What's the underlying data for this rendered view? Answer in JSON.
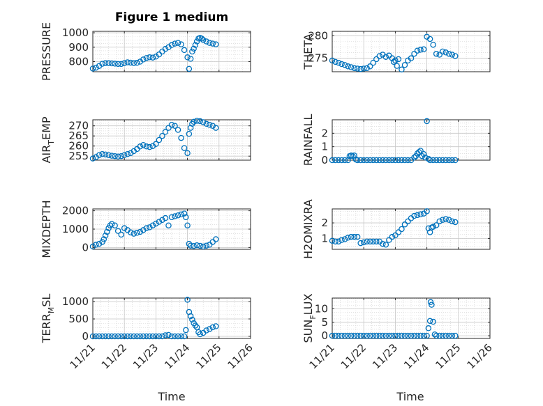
{
  "title": "Figure 1 medium",
  "xlabel": "Time",
  "colors": {
    "marker": "#0072BD",
    "axis": "#262626",
    "grid": "#d0d0d0"
  },
  "chart_data": [
    {
      "type": "scatter",
      "ylabel": "PRESSURE",
      "xlim": [
        0,
        5
      ],
      "ylim": [
        730,
        1010
      ],
      "yticks": [
        800,
        900,
        1000
      ],
      "ytick_labels": [
        "800",
        "900",
        "1000"
      ],
      "xticks": [
        0,
        1,
        2,
        3,
        4,
        5
      ],
      "xtick_labels": [
        "",
        "",
        "",
        "",
        "",
        ""
      ],
      "x": [
        0,
        0.1,
        0.2,
        0.3,
        0.4,
        0.5,
        0.6,
        0.7,
        0.8,
        0.9,
        1.0,
        1.1,
        1.2,
        1.3,
        1.4,
        1.5,
        1.6,
        1.7,
        1.8,
        1.9,
        2.0,
        2.1,
        2.2,
        2.3,
        2.4,
        2.5,
        2.6,
        2.7,
        2.8,
        2.9,
        3.0,
        3.05,
        3.1,
        3.15,
        3.2,
        3.25,
        3.3,
        3.35,
        3.4,
        3.45,
        3.5,
        3.6,
        3.7,
        3.8,
        3.9
      ],
      "y": [
        752,
        758,
        770,
        785,
        790,
        790,
        788,
        786,
        784,
        784,
        790,
        795,
        793,
        790,
        792,
        800,
        815,
        825,
        830,
        828,
        835,
        850,
        870,
        888,
        900,
        915,
        925,
        930,
        920,
        880,
        830,
        750,
        820,
        870,
        890,
        915,
        940,
        960,
        965,
        960,
        950,
        940,
        930,
        925,
        920
      ]
    },
    {
      "type": "scatter",
      "ylabel": "THETA",
      "xlim": [
        0,
        5
      ],
      "ylim": [
        272,
        281
      ],
      "yticks": [
        275,
        280
      ],
      "ytick_labels": [
        "275",
        "280"
      ],
      "xticks": [
        0,
        1,
        2,
        3,
        4,
        5
      ],
      "xtick_labels": [
        "",
        "",
        "",
        "",
        "",
        ""
      ],
      "x": [
        0,
        0.1,
        0.2,
        0.3,
        0.4,
        0.5,
        0.6,
        0.7,
        0.8,
        0.9,
        1.0,
        1.1,
        1.2,
        1.3,
        1.4,
        1.5,
        1.6,
        1.7,
        1.8,
        1.9,
        1.95,
        2.0,
        2.05,
        2.1,
        2.2,
        2.3,
        2.4,
        2.5,
        2.6,
        2.7,
        2.8,
        2.9,
        3.0,
        3.1,
        3.2,
        3.3,
        3.4,
        3.5,
        3.6,
        3.7,
        3.8,
        3.9
      ],
      "y": [
        274.5,
        274.2,
        274,
        273.7,
        273.5,
        273.2,
        273,
        272.8,
        272.7,
        272.6,
        272.7,
        272.8,
        273.2,
        274,
        274.8,
        275.5,
        275.8,
        275.3,
        275.6,
        275,
        274.2,
        274.5,
        273.3,
        274.8,
        272.5,
        273.5,
        274.5,
        275,
        276,
        276.7,
        276.9,
        277,
        279.8,
        279.3,
        278,
        276,
        275.8,
        276.5,
        276.3,
        276,
        275.8,
        275.5
      ]
    },
    {
      "type": "scatter",
      "ylabel": "AIR_TEMP",
      "xlim": [
        0,
        5
      ],
      "ylim": [
        253,
        273
      ],
      "yticks": [
        255,
        260,
        265,
        270
      ],
      "ytick_labels": [
        "255",
        "260",
        "265",
        "270"
      ],
      "xticks": [
        0,
        1,
        2,
        3,
        4,
        5
      ],
      "xtick_labels": [
        "",
        "",
        "",
        "",
        "",
        ""
      ],
      "x": [
        0,
        0.1,
        0.2,
        0.3,
        0.4,
        0.5,
        0.6,
        0.7,
        0.8,
        0.9,
        1.0,
        1.1,
        1.2,
        1.3,
        1.4,
        1.5,
        1.6,
        1.7,
        1.8,
        1.9,
        2.0,
        2.1,
        2.2,
        2.3,
        2.4,
        2.5,
        2.6,
        2.7,
        2.8,
        2.9,
        3.0,
        3.05,
        3.1,
        3.15,
        3.2,
        3.3,
        3.4,
        3.5,
        3.6,
        3.7,
        3.8,
        3.9
      ],
      "y": [
        253.8,
        254.5,
        255.5,
        256,
        255.8,
        255.5,
        255.2,
        255,
        254.8,
        255,
        255.5,
        256,
        256.5,
        257.5,
        258.5,
        259.8,
        260.5,
        259.8,
        259.5,
        260,
        261,
        263,
        265,
        267,
        269,
        270.5,
        270,
        268,
        264,
        259,
        256.5,
        266,
        269,
        271,
        272,
        272.5,
        272.3,
        271.8,
        271,
        270.5,
        270,
        269
      ]
    },
    {
      "type": "scatter",
      "ylabel": "RAINFALL",
      "xlim": [
        0,
        5
      ],
      "ylim": [
        0,
        3
      ],
      "yticks": [
        0,
        1,
        2
      ],
      "ytick_labels": [
        "0",
        "1",
        "2"
      ],
      "xticks": [
        0,
        1,
        2,
        3,
        4,
        5
      ],
      "xtick_labels": [
        "",
        "",
        "",
        "",
        "",
        ""
      ],
      "x": [
        0,
        0.1,
        0.2,
        0.3,
        0.4,
        0.5,
        0.55,
        0.6,
        0.65,
        0.7,
        0.75,
        0.8,
        0.9,
        1.0,
        1.1,
        1.2,
        1.3,
        1.4,
        1.5,
        1.6,
        1.7,
        1.8,
        1.9,
        2.0,
        2.1,
        2.2,
        2.3,
        2.4,
        2.5,
        2.6,
        2.65,
        2.7,
        2.75,
        2.8,
        2.85,
        2.9,
        2.95,
        3.0,
        3.05,
        3.1,
        3.2,
        3.3,
        3.4,
        3.5,
        3.6,
        3.7,
        3.8,
        3.9
      ],
      "y": [
        0,
        0,
        0,
        0,
        0,
        0,
        0.3,
        0.35,
        0.3,
        0.35,
        0.05,
        0,
        0,
        0,
        0,
        0,
        0,
        0,
        0,
        0,
        0,
        0,
        0,
        0,
        0,
        0,
        0,
        0,
        0,
        0.2,
        0.3,
        0.5,
        0.6,
        0.7,
        0.3,
        0.45,
        0.2,
        2.9,
        0.1,
        0,
        0,
        0,
        0,
        0,
        0,
        0,
        0,
        0
      ]
    },
    {
      "type": "scatter",
      "ylabel": "MIXDEPTH",
      "xlim": [
        0,
        5
      ],
      "ylim": [
        -100,
        2100
      ],
      "yticks": [
        0,
        1000,
        2000
      ],
      "ytick_labels": [
        "0",
        "1000",
        "2000"
      ],
      "xticks": [
        0,
        1,
        2,
        3,
        4,
        5
      ],
      "xtick_labels": [
        "",
        "",
        "",
        "",
        "",
        ""
      ],
      "x": [
        0,
        0.1,
        0.2,
        0.3,
        0.35,
        0.4,
        0.45,
        0.5,
        0.55,
        0.6,
        0.7,
        0.8,
        0.9,
        1.0,
        1.1,
        1.2,
        1.3,
        1.4,
        1.5,
        1.6,
        1.7,
        1.8,
        1.9,
        2.0,
        2.1,
        2.2,
        2.3,
        2.4,
        2.5,
        2.6,
        2.7,
        2.8,
        2.9,
        2.95,
        3.0,
        3.05,
        3.1,
        3.2,
        3.3,
        3.4,
        3.5,
        3.6,
        3.7,
        3.8,
        3.9
      ],
      "y": [
        50,
        150,
        200,
        300,
        450,
        650,
        850,
        1050,
        1200,
        1280,
        1200,
        900,
        700,
        1050,
        950,
        820,
        750,
        800,
        850,
        950,
        1050,
        1100,
        1200,
        1300,
        1400,
        1500,
        1600,
        1200,
        1650,
        1700,
        1750,
        1800,
        1850,
        1650,
        1200,
        200,
        100,
        80,
        120,
        90,
        50,
        100,
        150,
        300,
        450
      ]
    },
    {
      "type": "scatter",
      "ylabel": "H2OMIXRA",
      "xlim": [
        0,
        5
      ],
      "ylim": [
        0.3,
        2.9
      ],
      "yticks": [
        1,
        2
      ],
      "ytick_labels": [
        "1",
        "2"
      ],
      "xticks": [
        0,
        1,
        2,
        3,
        4,
        5
      ],
      "xtick_labels": [
        "",
        "",
        "",
        "",
        "",
        ""
      ],
      "x": [
        0,
        0.1,
        0.2,
        0.3,
        0.4,
        0.5,
        0.6,
        0.7,
        0.8,
        0.9,
        1.0,
        1.1,
        1.2,
        1.3,
        1.4,
        1.5,
        1.6,
        1.7,
        1.8,
        1.9,
        2.0,
        2.1,
        2.2,
        2.3,
        2.4,
        2.5,
        2.6,
        2.7,
        2.8,
        2.9,
        3.0,
        3.05,
        3.1,
        3.15,
        3.2,
        3.3,
        3.4,
        3.5,
        3.6,
        3.7,
        3.8,
        3.9
      ],
      "y": [
        0.85,
        0.8,
        0.8,
        0.9,
        0.95,
        1.05,
        1.1,
        1.1,
        1.1,
        0.7,
        0.75,
        0.8,
        0.8,
        0.8,
        0.8,
        0.8,
        0.65,
        0.6,
        0.9,
        1.1,
        1.2,
        1.4,
        1.6,
        1.9,
        2.1,
        2.3,
        2.45,
        2.5,
        2.55,
        2.6,
        2.75,
        1.65,
        1.4,
        1.7,
        1.75,
        1.85,
        2.1,
        2.2,
        2.25,
        2.2,
        2.1,
        2.05
      ]
    },
    {
      "type": "scatter",
      "ylabel": "TERR_MSL",
      "xlim": [
        0,
        5
      ],
      "ylim": [
        -60,
        1100
      ],
      "yticks": [
        0,
        500,
        1000
      ],
      "ytick_labels": [
        "0",
        "500",
        "1000"
      ],
      "xticks": [
        0,
        1,
        2,
        3,
        4,
        5
      ],
      "xtick_labels": [
        "11/21",
        "11/22",
        "11/23",
        "11/24",
        "11/25",
        "11/26"
      ],
      "x": [
        0,
        0.1,
        0.2,
        0.3,
        0.4,
        0.5,
        0.6,
        0.7,
        0.8,
        0.9,
        1.0,
        1.1,
        1.2,
        1.3,
        1.4,
        1.5,
        1.6,
        1.7,
        1.8,
        1.9,
        2.0,
        2.1,
        2.2,
        2.3,
        2.4,
        2.5,
        2.6,
        2.7,
        2.8,
        2.9,
        2.95,
        3.0,
        3.05,
        3.1,
        3.15,
        3.2,
        3.25,
        3.3,
        3.35,
        3.4,
        3.5,
        3.6,
        3.7,
        3.8,
        3.9
      ],
      "y": [
        0,
        0,
        0,
        0,
        0,
        0,
        0,
        0,
        0,
        0,
        0,
        0,
        0,
        0,
        0,
        0,
        0,
        0,
        0,
        0,
        0,
        0,
        0,
        30,
        40,
        0,
        0,
        0,
        0,
        0,
        180,
        1050,
        700,
        580,
        480,
        380,
        310,
        260,
        120,
        60,
        100,
        170,
        210,
        260,
        290
      ]
    },
    {
      "type": "scatter",
      "ylabel": "SUN_FLUX",
      "xlim": [
        0,
        5
      ],
      "ylim": [
        -1,
        14
      ],
      "yticks": [
        0,
        5,
        10
      ],
      "ytick_labels": [
        "0",
        "5",
        "10"
      ],
      "xticks": [
        0,
        1,
        2,
        3,
        4,
        5
      ],
      "xtick_labels": [
        "11/21",
        "11/22",
        "11/23",
        "11/24",
        "11/25",
        "11/26"
      ],
      "x": [
        0,
        0.1,
        0.2,
        0.3,
        0.4,
        0.5,
        0.6,
        0.7,
        0.8,
        0.9,
        1.0,
        1.1,
        1.2,
        1.3,
        1.4,
        1.5,
        1.6,
        1.7,
        1.8,
        1.9,
        2.0,
        2.1,
        2.2,
        2.3,
        2.4,
        2.5,
        2.6,
        2.7,
        2.8,
        2.9,
        3.0,
        3.05,
        3.1,
        3.12,
        3.15,
        3.2,
        3.25,
        3.3,
        3.4,
        3.5,
        3.6,
        3.7,
        3.8,
        3.9
      ],
      "y": [
        0,
        0,
        0,
        0,
        0,
        0,
        0,
        0,
        0,
        0,
        0,
        0,
        0,
        0,
        0,
        0,
        0,
        0,
        0,
        0,
        0,
        0,
        0,
        0,
        0,
        0,
        0,
        0,
        0,
        0,
        0,
        2.8,
        5.5,
        12.5,
        11.5,
        5.2,
        0.5,
        0,
        0,
        0,
        0,
        0,
        0,
        0
      ]
    }
  ]
}
